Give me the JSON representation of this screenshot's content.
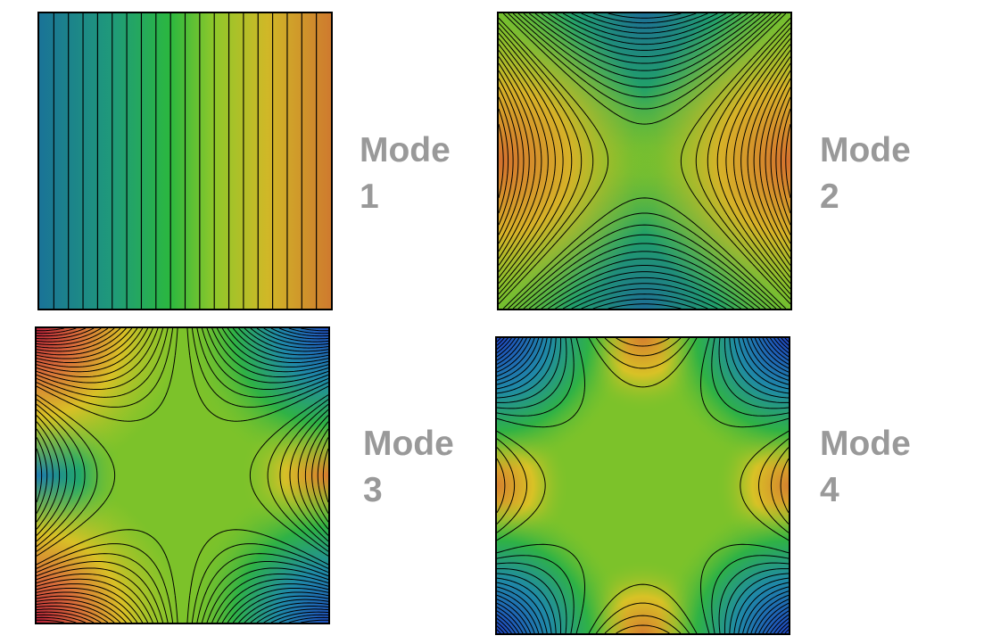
{
  "modes": [
    {
      "word": "Mode",
      "number": "1"
    },
    {
      "word": "Mode",
      "number": "2"
    },
    {
      "word": "Mode",
      "number": "3"
    },
    {
      "word": "Mode",
      "number": "4"
    }
  ]
}
